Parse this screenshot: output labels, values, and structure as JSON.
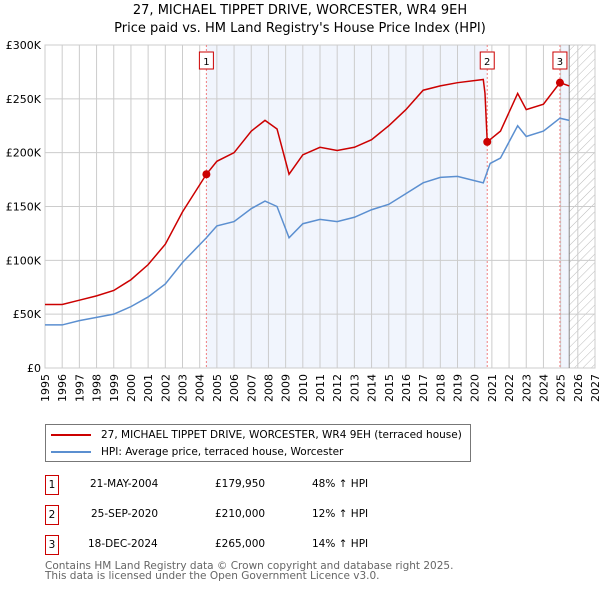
{
  "chart_data": {
    "type": "line",
    "title": "27, MICHAEL TIPPET DRIVE, WORCESTER, WR4 9EH",
    "subtitle": "Price paid vs. HM Land Registry's House Price Index (HPI)",
    "xlim": [
      1995,
      2027
    ],
    "ylim": [
      0,
      300000
    ],
    "x_ticks": [
      "1995",
      "1996",
      "1997",
      "1998",
      "1999",
      "2000",
      "2001",
      "2002",
      "2003",
      "2004",
      "2005",
      "2006",
      "2007",
      "2008",
      "2009",
      "2010",
      "2011",
      "2012",
      "2013",
      "2014",
      "2015",
      "2016",
      "2017",
      "2018",
      "2019",
      "2020",
      "2021",
      "2022",
      "2023",
      "2024",
      "2025",
      "2026",
      "2027"
    ],
    "y_ticks": [
      {
        "v": 0,
        "label": "£0"
      },
      {
        "v": 50000,
        "label": "£50K"
      },
      {
        "v": 100000,
        "label": "£100K"
      },
      {
        "v": 150000,
        "label": "£150K"
      },
      {
        "v": 200000,
        "label": "£200K"
      },
      {
        "v": 250000,
        "label": "£250K"
      },
      {
        "v": 300000,
        "label": "£300K"
      }
    ],
    "grid": true,
    "shaded_ranges": [
      [
        2004.39,
        2020.73
      ],
      [
        2024.96,
        2025.5
      ]
    ],
    "forecast_hatch_from": 2025.5,
    "series": [
      {
        "name": "27, MICHAEL TIPPET DRIVE, WORCESTER, WR4 9EH (terraced house)",
        "color": "#cc0000",
        "x": [
          1995,
          1996,
          1997,
          1998,
          1999,
          2000,
          2001,
          2002,
          2003,
          2004.39,
          2005,
          2006,
          2007,
          2007.8,
          2008.5,
          2009.2,
          2010,
          2011,
          2012,
          2013,
          2014,
          2015,
          2016,
          2017,
          2018,
          2019,
          2020.5,
          2020.6,
          2020.73,
          2021.5,
          2022.5,
          2023,
          2024,
          2024.96,
          2025.5
        ],
        "values": [
          59000,
          59000,
          63000,
          67000,
          72000,
          82000,
          96000,
          115000,
          145000,
          179950,
          192000,
          200000,
          220000,
          230000,
          222000,
          180000,
          198000,
          205000,
          202000,
          205000,
          212000,
          225000,
          240000,
          258000,
          262000,
          265000,
          268000,
          255000,
          210000,
          220000,
          255000,
          240000,
          245000,
          265000,
          262000
        ]
      },
      {
        "name": "HPI: Average price, terraced house, Worcester",
        "color": "#5b8fd0",
        "x": [
          1995,
          1996,
          1997,
          1998,
          1999,
          2000,
          2001,
          2002,
          2003,
          2004.39,
          2005,
          2006,
          2007,
          2007.8,
          2008.5,
          2009.2,
          2010,
          2011,
          2012,
          2013,
          2014,
          2015,
          2016,
          2017,
          2018,
          2019,
          2020.5,
          2020.9,
          2021.5,
          2022.5,
          2023,
          2024,
          2024.96,
          2025.5
        ],
        "values": [
          40000,
          40000,
          44000,
          47000,
          50000,
          57000,
          66000,
          78000,
          98000,
          121000,
          132000,
          136000,
          148000,
          155000,
          150000,
          121000,
          134000,
          138000,
          136000,
          140000,
          147000,
          152000,
          162000,
          172000,
          177000,
          178000,
          172000,
          190000,
          195000,
          225000,
          215000,
          220000,
          232000,
          230000
        ]
      }
    ],
    "markers": [
      {
        "label": "1",
        "x": 2004.39,
        "value": 179950
      },
      {
        "label": "2",
        "x": 2020.73,
        "value": 210000
      },
      {
        "label": "3",
        "x": 2024.96,
        "value": 265000
      }
    ]
  },
  "sales": [
    {
      "num": "1",
      "date": "21-MAY-2004",
      "price": "£179,950",
      "hpi": "48% ↑ HPI"
    },
    {
      "num": "2",
      "date": "25-SEP-2020",
      "price": "£210,000",
      "hpi": "12% ↑ HPI"
    },
    {
      "num": "3",
      "date": "18-DEC-2024",
      "price": "£265,000",
      "hpi": "14% ↑ HPI"
    }
  ],
  "footer": [
    "Contains HM Land Registry data © Crown copyright and database right 2025.",
    "This data is licensed under the Open Government Licence v3.0."
  ]
}
